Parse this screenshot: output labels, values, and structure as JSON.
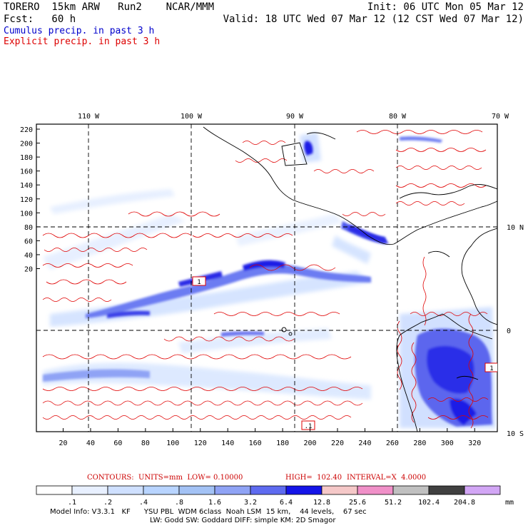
{
  "header": {
    "model_line": "TORERO  15km ARW   Run2    NCAR/MMM",
    "init": "Init: 06 UTC Mon 05 Mar 12",
    "fcst": "Fcst:   60 h",
    "valid": "Valid: 18 UTC Wed 07 Mar 12 (12 CST Wed 07 Mar 12)",
    "cumulus_label": "Cumulus precip. in past 3 h",
    "explicit_label": "Explicit precip. in past 3 h",
    "cumulus_color": "#0000cc",
    "explicit_color": "#dd0000"
  },
  "map": {
    "top_lon_labels": [
      "110 W",
      "100 W",
      "90 W",
      "80 W",
      "70 W"
    ],
    "right_lat_labels": [
      "10 N",
      "0",
      "10 S"
    ],
    "y_ticks": [
      "220",
      "200",
      "180",
      "160",
      "140",
      "120",
      "100",
      "80",
      "60",
      "40",
      "20"
    ],
    "x_ticks": [
      "20",
      "40",
      "60",
      "80",
      "100",
      "120",
      "140",
      "160",
      "180",
      "200",
      "220",
      "240",
      "260",
      "280",
      "300",
      "320"
    ],
    "box_labels": [
      "1",
      ".1",
      "1"
    ]
  },
  "colorbar": {
    "contours_label": "CONTOURS:  UNITS=mm  LOW= 0.10000",
    "high_label": "HIGH=  102.40",
    "interval_label": "INTERVAL=X  4.0000",
    "tick_labels": [
      ".1",
      ".2",
      ".4",
      ".8",
      "1.6",
      "3.2",
      "6.4",
      "12.8",
      "25.6",
      "51.2",
      "102.4",
      "204.8"
    ],
    "units": "mm",
    "colors": [
      "#ffffff",
      "#e8f0ff",
      "#cfe0ff",
      "#b8d4ff",
      "#a3c2f5",
      "#8fa3f5",
      "#5e6bf0",
      "#1414e8",
      "#f5c8c8",
      "#f090c8",
      "#c0c0c0",
      "#404040",
      "#d2a6f5"
    ]
  },
  "footer": {
    "line1": "Model Info: V3.3.1   KF      YSU PBL  WDM 6class  Noah LSM  15 km,    44 levels,    67 sec",
    "line2": "LW: Godd SW: Goddard DIFF: simple KM: 2D Smagor"
  }
}
